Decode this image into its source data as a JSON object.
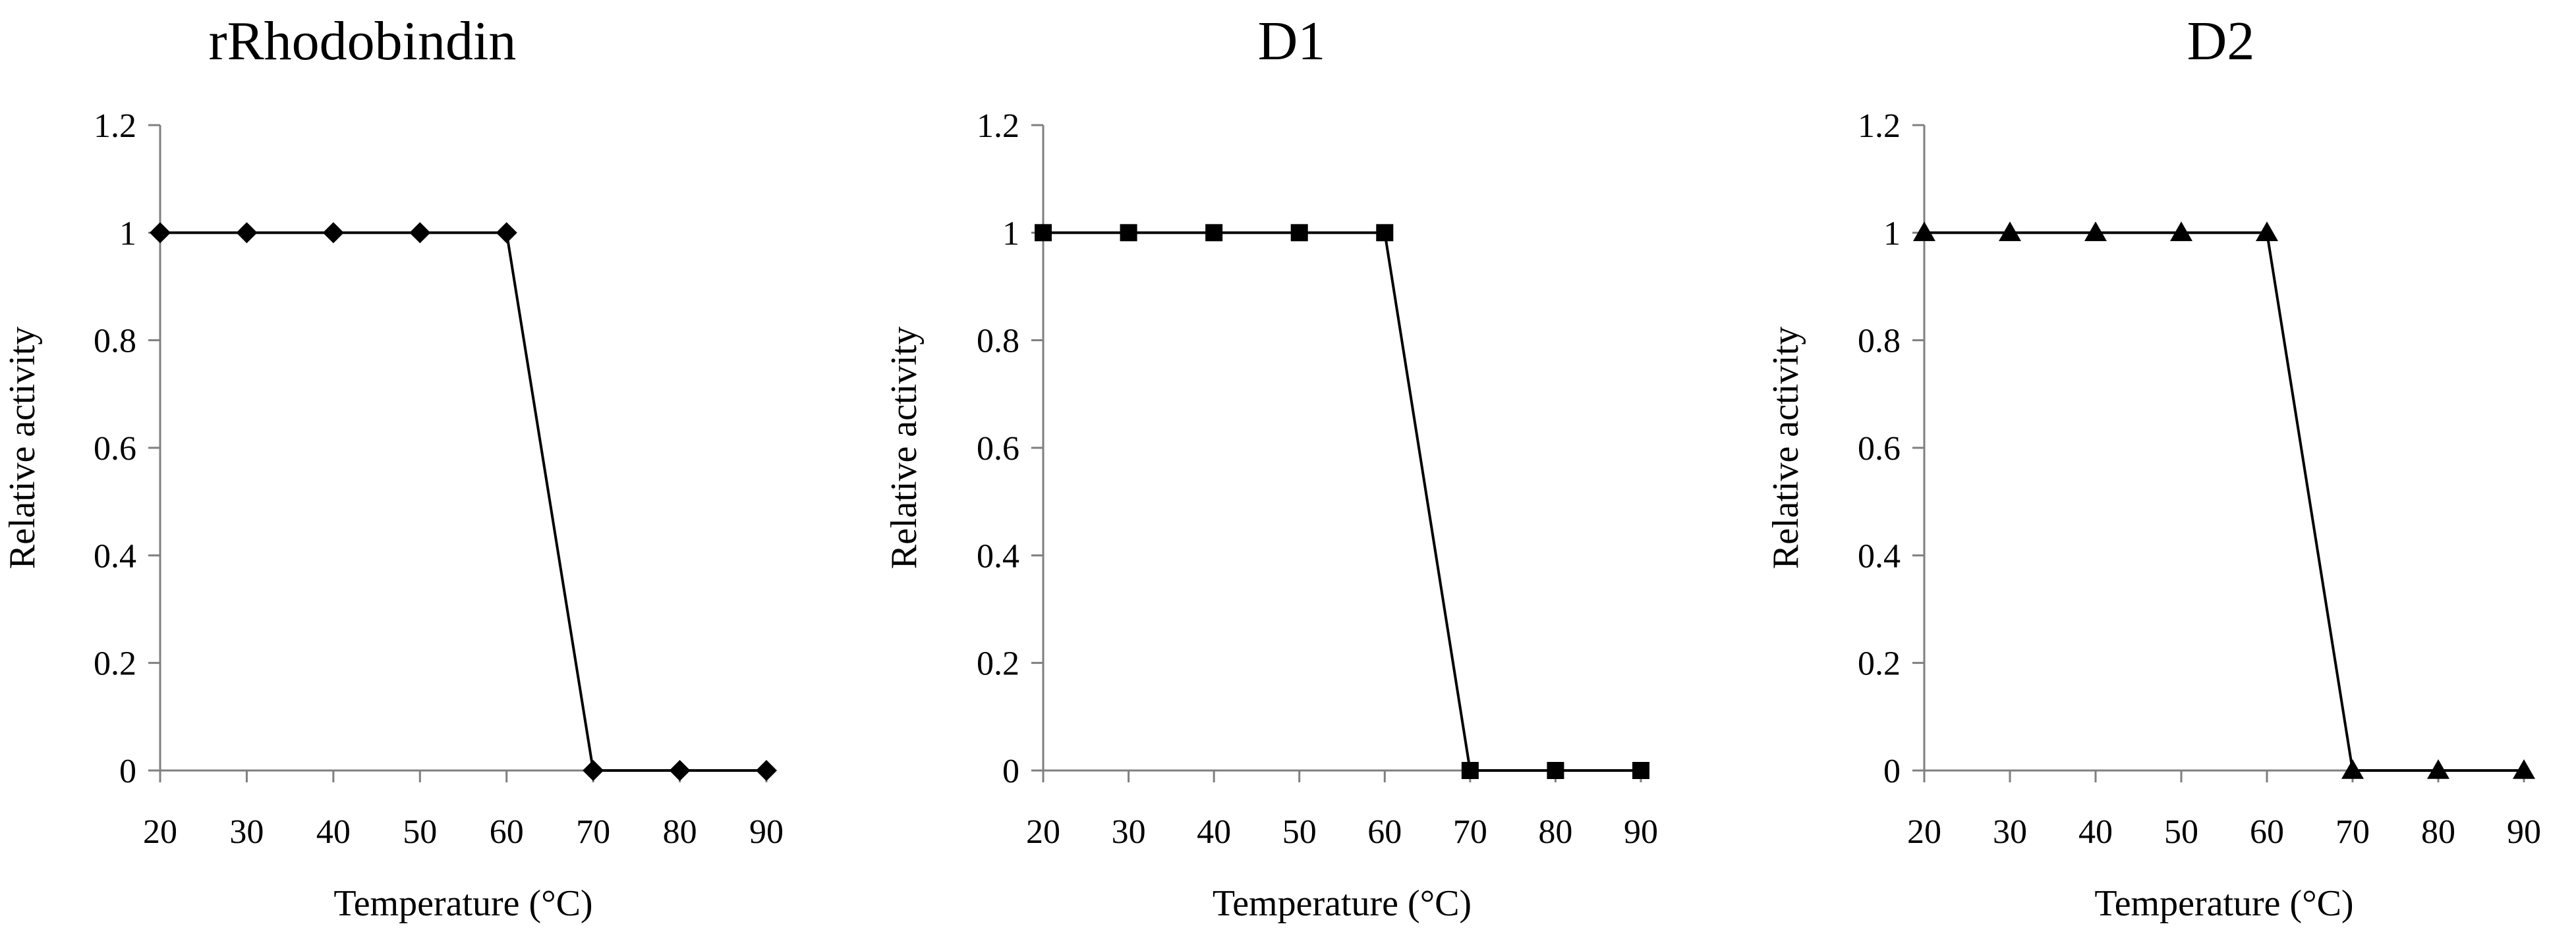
{
  "chart_data": [
    {
      "type": "line",
      "title": "rRhodobindin",
      "xlabel": "Temperature (°C)",
      "ylabel": "Relative activity",
      "x": [
        20,
        30,
        40,
        50,
        60,
        70,
        80,
        90
      ],
      "series": [
        {
          "values": [
            1,
            1,
            1,
            1,
            1,
            0,
            0,
            0
          ],
          "marker": "diamond"
        }
      ],
      "xticks": [
        "20",
        "30",
        "40",
        "50",
        "60",
        "70",
        "80",
        "90"
      ],
      "yticks": [
        "0",
        "0.2",
        "0.4",
        "0.6",
        "0.8",
        "1",
        "1.2"
      ],
      "xlim": [
        20,
        90
      ],
      "ylim": [
        0,
        1.2
      ],
      "grid": false,
      "legend": "none",
      "line_color": "#000000"
    },
    {
      "type": "line",
      "title": "D1",
      "xlabel": "Temperature (°C)",
      "ylabel": "Relative activity",
      "x": [
        20,
        30,
        40,
        50,
        60,
        70,
        80,
        90
      ],
      "series": [
        {
          "values": [
            1,
            1,
            1,
            1,
            1,
            0,
            0,
            0
          ],
          "marker": "square"
        }
      ],
      "xticks": [
        "20",
        "30",
        "40",
        "50",
        "60",
        "70",
        "80",
        "90"
      ],
      "yticks": [
        "0",
        "0.2",
        "0.4",
        "0.6",
        "0.8",
        "1",
        "1.2"
      ],
      "xlim": [
        20,
        90
      ],
      "ylim": [
        0,
        1.2
      ],
      "grid": false,
      "legend": "none",
      "line_color": "#000000"
    },
    {
      "type": "line",
      "title": "D2",
      "xlabel": "Temperature (°C)",
      "ylabel": "Relative activity",
      "x": [
        20,
        30,
        40,
        50,
        60,
        70,
        80,
        90
      ],
      "series": [
        {
          "values": [
            1,
            1,
            1,
            1,
            1,
            0,
            0,
            0
          ],
          "marker": "triangle"
        }
      ],
      "xticks": [
        "20",
        "30",
        "40",
        "50",
        "60",
        "70",
        "80",
        "90"
      ],
      "yticks": [
        "0",
        "0.2",
        "0.4",
        "0.6",
        "0.8",
        "1",
        "1.2"
      ],
      "xlim": [
        20,
        90
      ],
      "ylim": [
        0,
        1.2
      ],
      "grid": false,
      "legend": "none",
      "line_color": "#000000"
    }
  ]
}
